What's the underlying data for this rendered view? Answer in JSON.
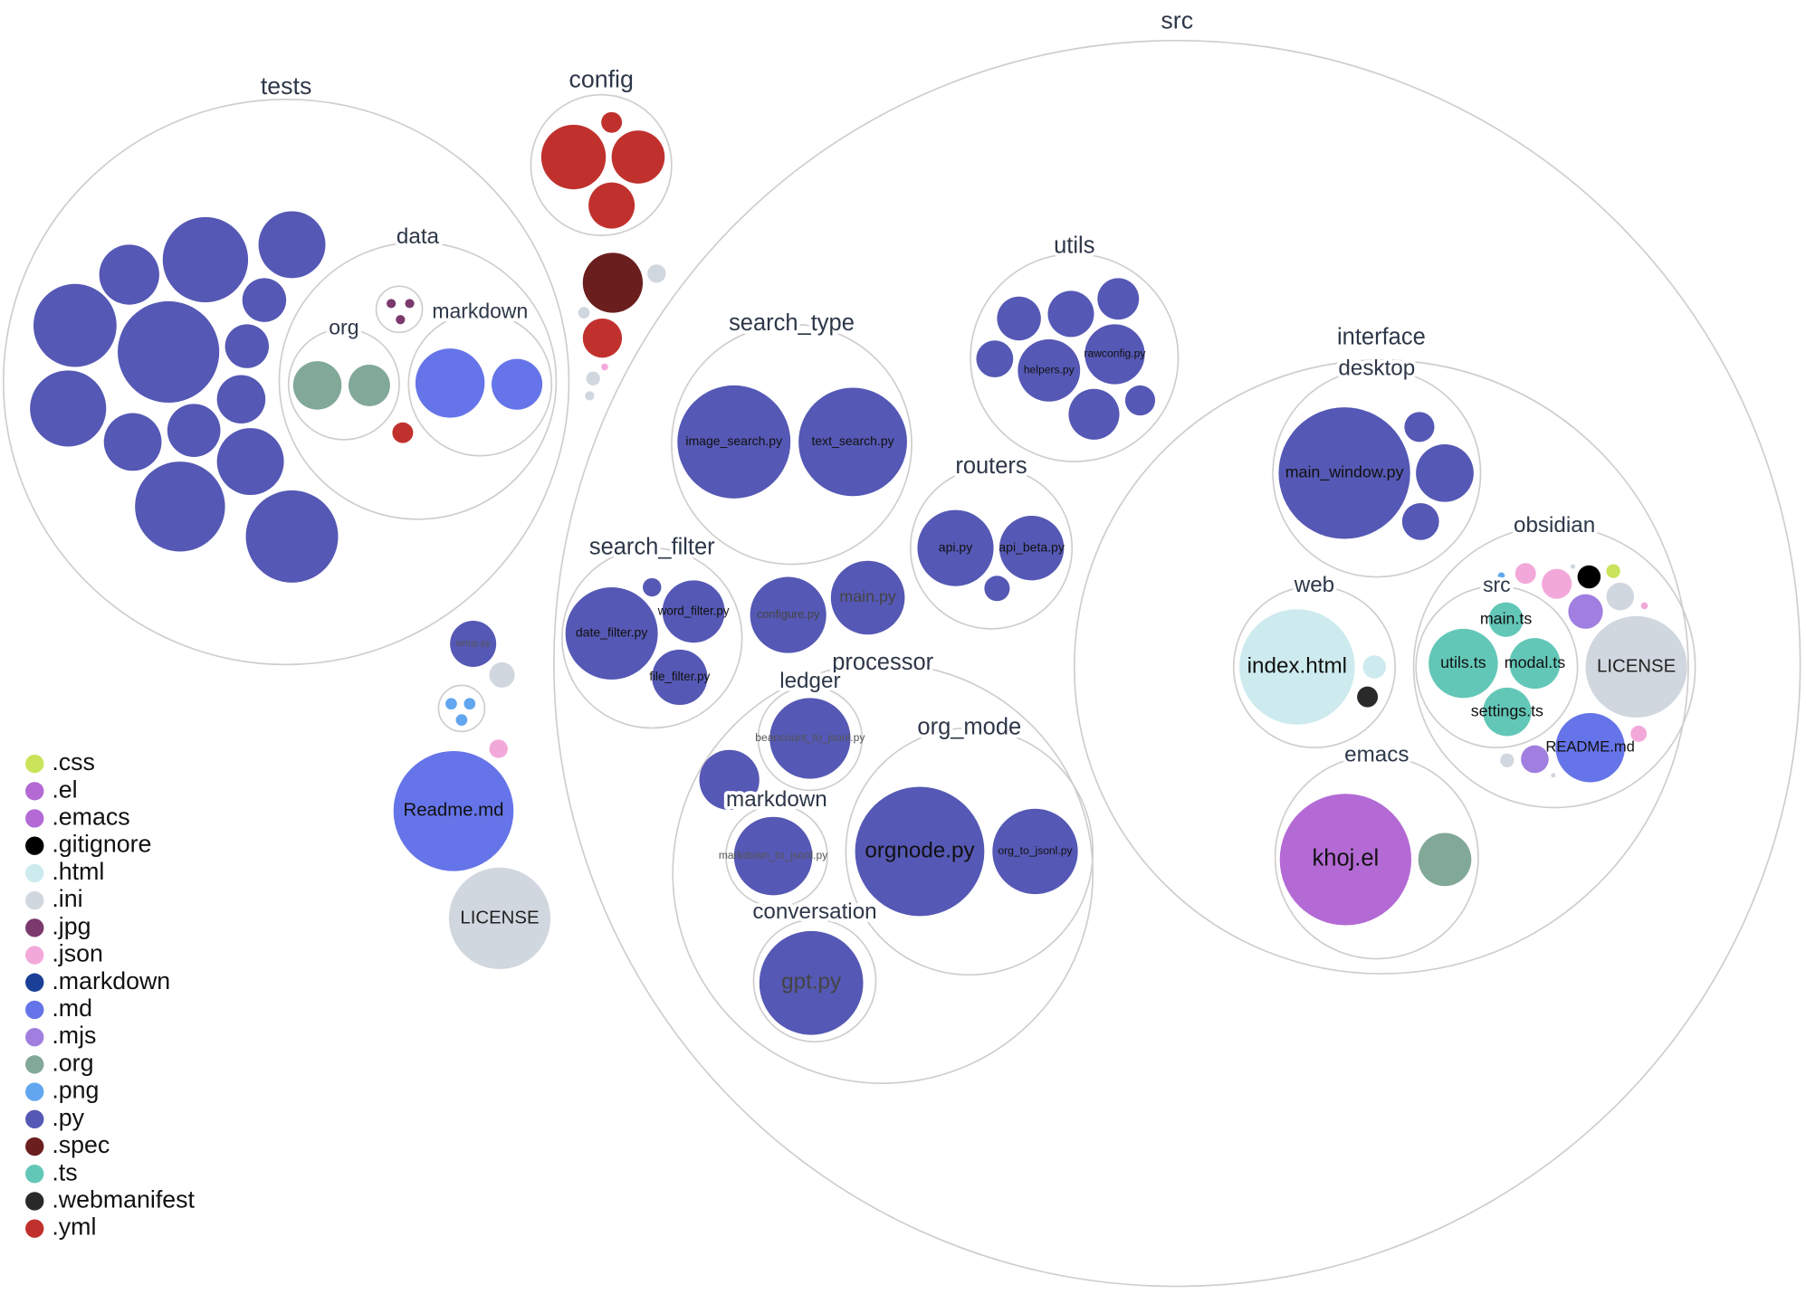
{
  "colors": {
    "css": "#c9e35a",
    "el": "#b36ad4",
    "emacs": "#b36ad4",
    "gitignore": "#000000",
    "html": "#cdebee",
    "ini": "#d1d7df",
    "jpg": "#7b3a6e",
    "json": "#f2a9da",
    "markdown": "#1a3f96",
    "md": "#6574e8",
    "mjs": "#a07fe0",
    "org": "#82a898",
    "png": "#62a6ef",
    "py": "#5558b4",
    "spec": "#6a1e1e",
    "ts": "#63c7b8",
    "webmanifest": "#2a2a2a",
    "yml": "#c0312e"
  },
  "legend": [
    ".css",
    ".el",
    ".emacs",
    ".gitignore",
    ".html",
    ".ini",
    ".jpg",
    ".json",
    ".markdown",
    ".md",
    ".mjs",
    ".org",
    ".png",
    ".py",
    ".spec",
    ".ts",
    ".webmanifest",
    ".yml"
  ],
  "directories": {
    "src": "src",
    "tests": "tests",
    "config": "config",
    "data": "data",
    "org": "org",
    "markdown": "markdown",
    "search_type": "search_type",
    "utils": "utils",
    "routers": "routers",
    "search_filter": "search_filter",
    "processor": "processor",
    "ledger": "ledger",
    "p_markdown": "markdown",
    "org_mode": "org_mode",
    "conversation": "conversation",
    "interface": "interface",
    "desktop": "desktop",
    "web": "web",
    "emacs": "emacs",
    "obsidian": "obsidian",
    "obs_src": "src",
    "images": "",
    "jpgdir": ""
  },
  "files": {
    "setup": {
      "name": "setup.py",
      "ext": "py"
    },
    "readme": {
      "name": "Readme.md",
      "ext": "md"
    },
    "license": {
      "name": "LICENSE",
      "ext": "ini"
    },
    "image_search": {
      "name": "image_search.py",
      "ext": "py"
    },
    "text_search": {
      "name": "text_search.py",
      "ext": "py"
    },
    "helpers": {
      "name": "helpers.py",
      "ext": "py"
    },
    "rawconfig": {
      "name": "rawconfig.py",
      "ext": "py"
    },
    "api": {
      "name": "api.py",
      "ext": "py"
    },
    "api_beta": {
      "name": "api_beta.py",
      "ext": "py"
    },
    "date_filter": {
      "name": "date_filter.py",
      "ext": "py"
    },
    "word_filter": {
      "name": "word_filter.py",
      "ext": "py"
    },
    "file_filter": {
      "name": "file_filter.py",
      "ext": "py"
    },
    "configure": {
      "name": "configure.py",
      "ext": "py"
    },
    "main": {
      "name": "main.py",
      "ext": "py"
    },
    "beancount": {
      "name": "beancount_to_jsonl.py",
      "ext": "py"
    },
    "md_to_jsonl": {
      "name": "markdown_to_jsonl.py",
      "ext": "py"
    },
    "orgnode": {
      "name": "orgnode.py",
      "ext": "py"
    },
    "org_to_jsonl": {
      "name": "org_to_jsonl.py",
      "ext": "py"
    },
    "gpt": {
      "name": "gpt.py",
      "ext": "py"
    },
    "main_window": {
      "name": "main_window.py",
      "ext": "py"
    },
    "index_html": {
      "name": "index.html",
      "ext": "html"
    },
    "khoj_el": {
      "name": "khoj.el",
      "ext": "el"
    },
    "main_ts": {
      "name": "main.ts",
      "ext": "ts"
    },
    "utils_ts": {
      "name": "utils.ts",
      "ext": "ts"
    },
    "modal_ts": {
      "name": "modal.ts",
      "ext": "ts"
    },
    "settings_ts": {
      "name": "settings.ts",
      "ext": "ts"
    },
    "obs_license": {
      "name": "LICENSE",
      "ext": "ini"
    },
    "obs_readme": {
      "name": "README.md",
      "ext": "md"
    }
  }
}
